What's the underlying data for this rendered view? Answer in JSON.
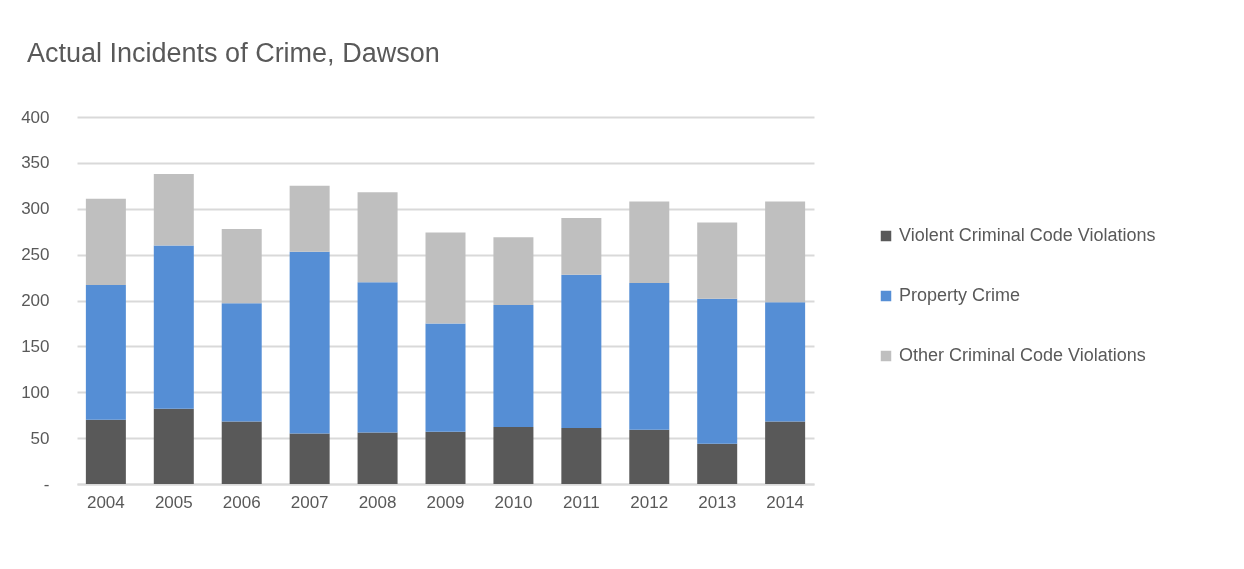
{
  "chart_data": {
    "type": "bar",
    "title": "Actual Incidents of Crime, Dawson",
    "categories": [
      "2004",
      "2005",
      "2006",
      "2007",
      "2008",
      "2009",
      "2010",
      "2011",
      "2012",
      "2013",
      "2014"
    ],
    "series": [
      {
        "name": "Violent Criminal Code Violations",
        "color": "#595959",
        "values": [
          70,
          82,
          68,
          55,
          56,
          57,
          62,
          61,
          59,
          44,
          68
        ]
      },
      {
        "name": "Property Crime",
        "color": "#558ed5",
        "values": [
          147,
          178,
          129,
          198,
          164,
          118,
          133,
          167,
          160,
          158,
          130
        ]
      },
      {
        "name": "Other Criminal Code Violations",
        "color": "#bfbfbf",
        "values": [
          94,
          78,
          81,
          72,
          98,
          99,
          74,
          62,
          89,
          83,
          110
        ]
      }
    ],
    "stacked": true,
    "ylim": [
      0,
      400
    ],
    "yticks": [
      {
        "value": 0,
        "label": "-"
      },
      50,
      100,
      150,
      200,
      250,
      300,
      350,
      400
    ],
    "grid": "y",
    "legend": "right"
  }
}
